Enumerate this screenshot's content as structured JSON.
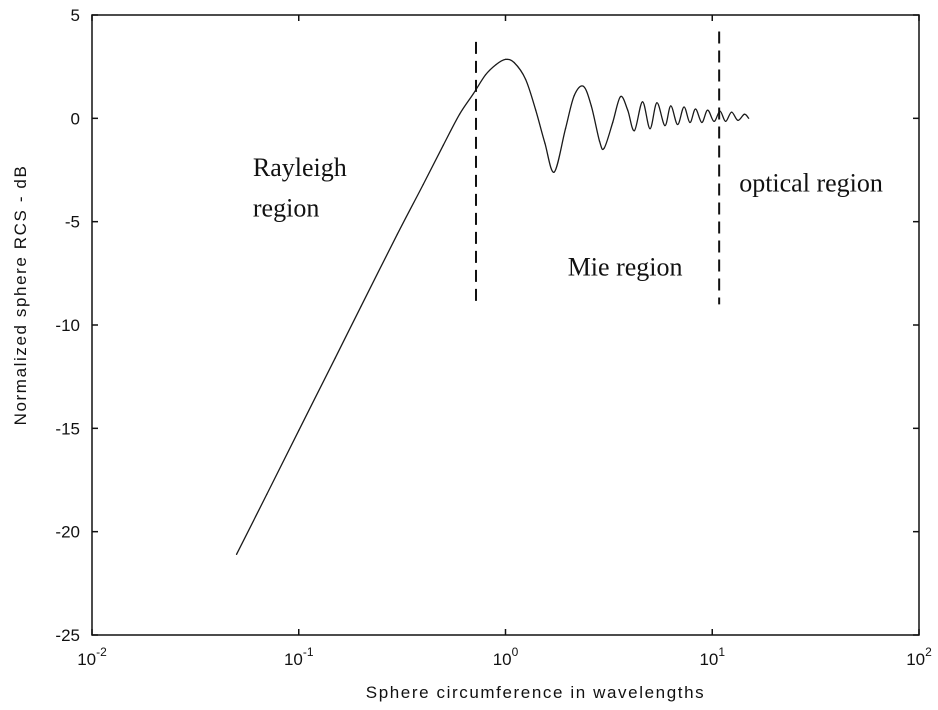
{
  "chart_data": {
    "type": "line",
    "title": "",
    "xlabel": "Sphere circumference in wavelengths",
    "ylabel": "Normalized sphere RCS - dB",
    "xscale": "log",
    "xlim": [
      0.01,
      100
    ],
    "ylim": [
      -25,
      5
    ],
    "grid": false,
    "legend": "none",
    "x_ticks": [
      {
        "base": "10",
        "exp": "-2",
        "value": 0.01
      },
      {
        "base": "10",
        "exp": "-1",
        "value": 0.1
      },
      {
        "base": "10",
        "exp": "0",
        "value": 1
      },
      {
        "base": "10",
        "exp": "1",
        "value": 10
      },
      {
        "base": "10",
        "exp": "2",
        "value": 100
      }
    ],
    "y_ticks": [
      "-25",
      "-20",
      "-15",
      "-10",
      "-5",
      "0",
      "5"
    ],
    "series": [
      {
        "x": [
          0.05,
          0.07,
          0.1,
          0.15,
          0.2,
          0.3,
          0.4,
          0.5,
          0.6,
          0.7,
          0.8,
          0.9,
          1.0,
          1.1,
          1.25,
          1.4,
          1.55,
          1.72,
          1.95,
          2.15,
          2.38,
          2.6,
          2.85,
          3.0,
          3.3,
          3.6,
          3.9,
          4.2,
          4.6,
          5.0,
          5.4,
          5.9,
          6.3,
          6.8,
          7.3,
          7.8,
          8.3,
          8.9,
          9.5,
          10.2,
          10.9,
          11.6,
          12.4,
          13.3,
          14.3,
          15.0
        ],
        "y": [
          -21.1,
          -18.2,
          -15.1,
          -11.6,
          -9.1,
          -5.6,
          -3.2,
          -1.3,
          0.2,
          1.2,
          2.1,
          2.6,
          2.85,
          2.7,
          1.9,
          0.4,
          -1.2,
          -2.6,
          -0.5,
          1.1,
          1.55,
          0.6,
          -1.1,
          -1.45,
          -0.2,
          1.05,
          0.4,
          -0.6,
          0.8,
          -0.5,
          0.75,
          -0.35,
          0.6,
          -0.3,
          0.55,
          -0.2,
          0.45,
          -0.2,
          0.4,
          -0.15,
          0.35,
          -0.15,
          0.3,
          -0.1,
          0.2,
          0.0
        ]
      }
    ],
    "vlines": [
      {
        "x": 0.72,
        "y_from": -9,
        "y_to": 3.7,
        "style": "dashed"
      },
      {
        "x": 10.8,
        "y_from": -9,
        "y_to": 4.2,
        "style": "dashed"
      }
    ],
    "annotations": [
      {
        "text": "Rayleigh",
        "x": 0.06,
        "y": -2.8
      },
      {
        "text": "region",
        "x": 0.06,
        "y": -4.75
      },
      {
        "text": "Mie region",
        "x": 2.0,
        "y": -7.6
      },
      {
        "text": "optical region",
        "x": 13.5,
        "y": -3.55
      }
    ],
    "colors": {
      "line": "#1a1a1a",
      "axes": "#111111",
      "background": "#ffffff"
    }
  }
}
